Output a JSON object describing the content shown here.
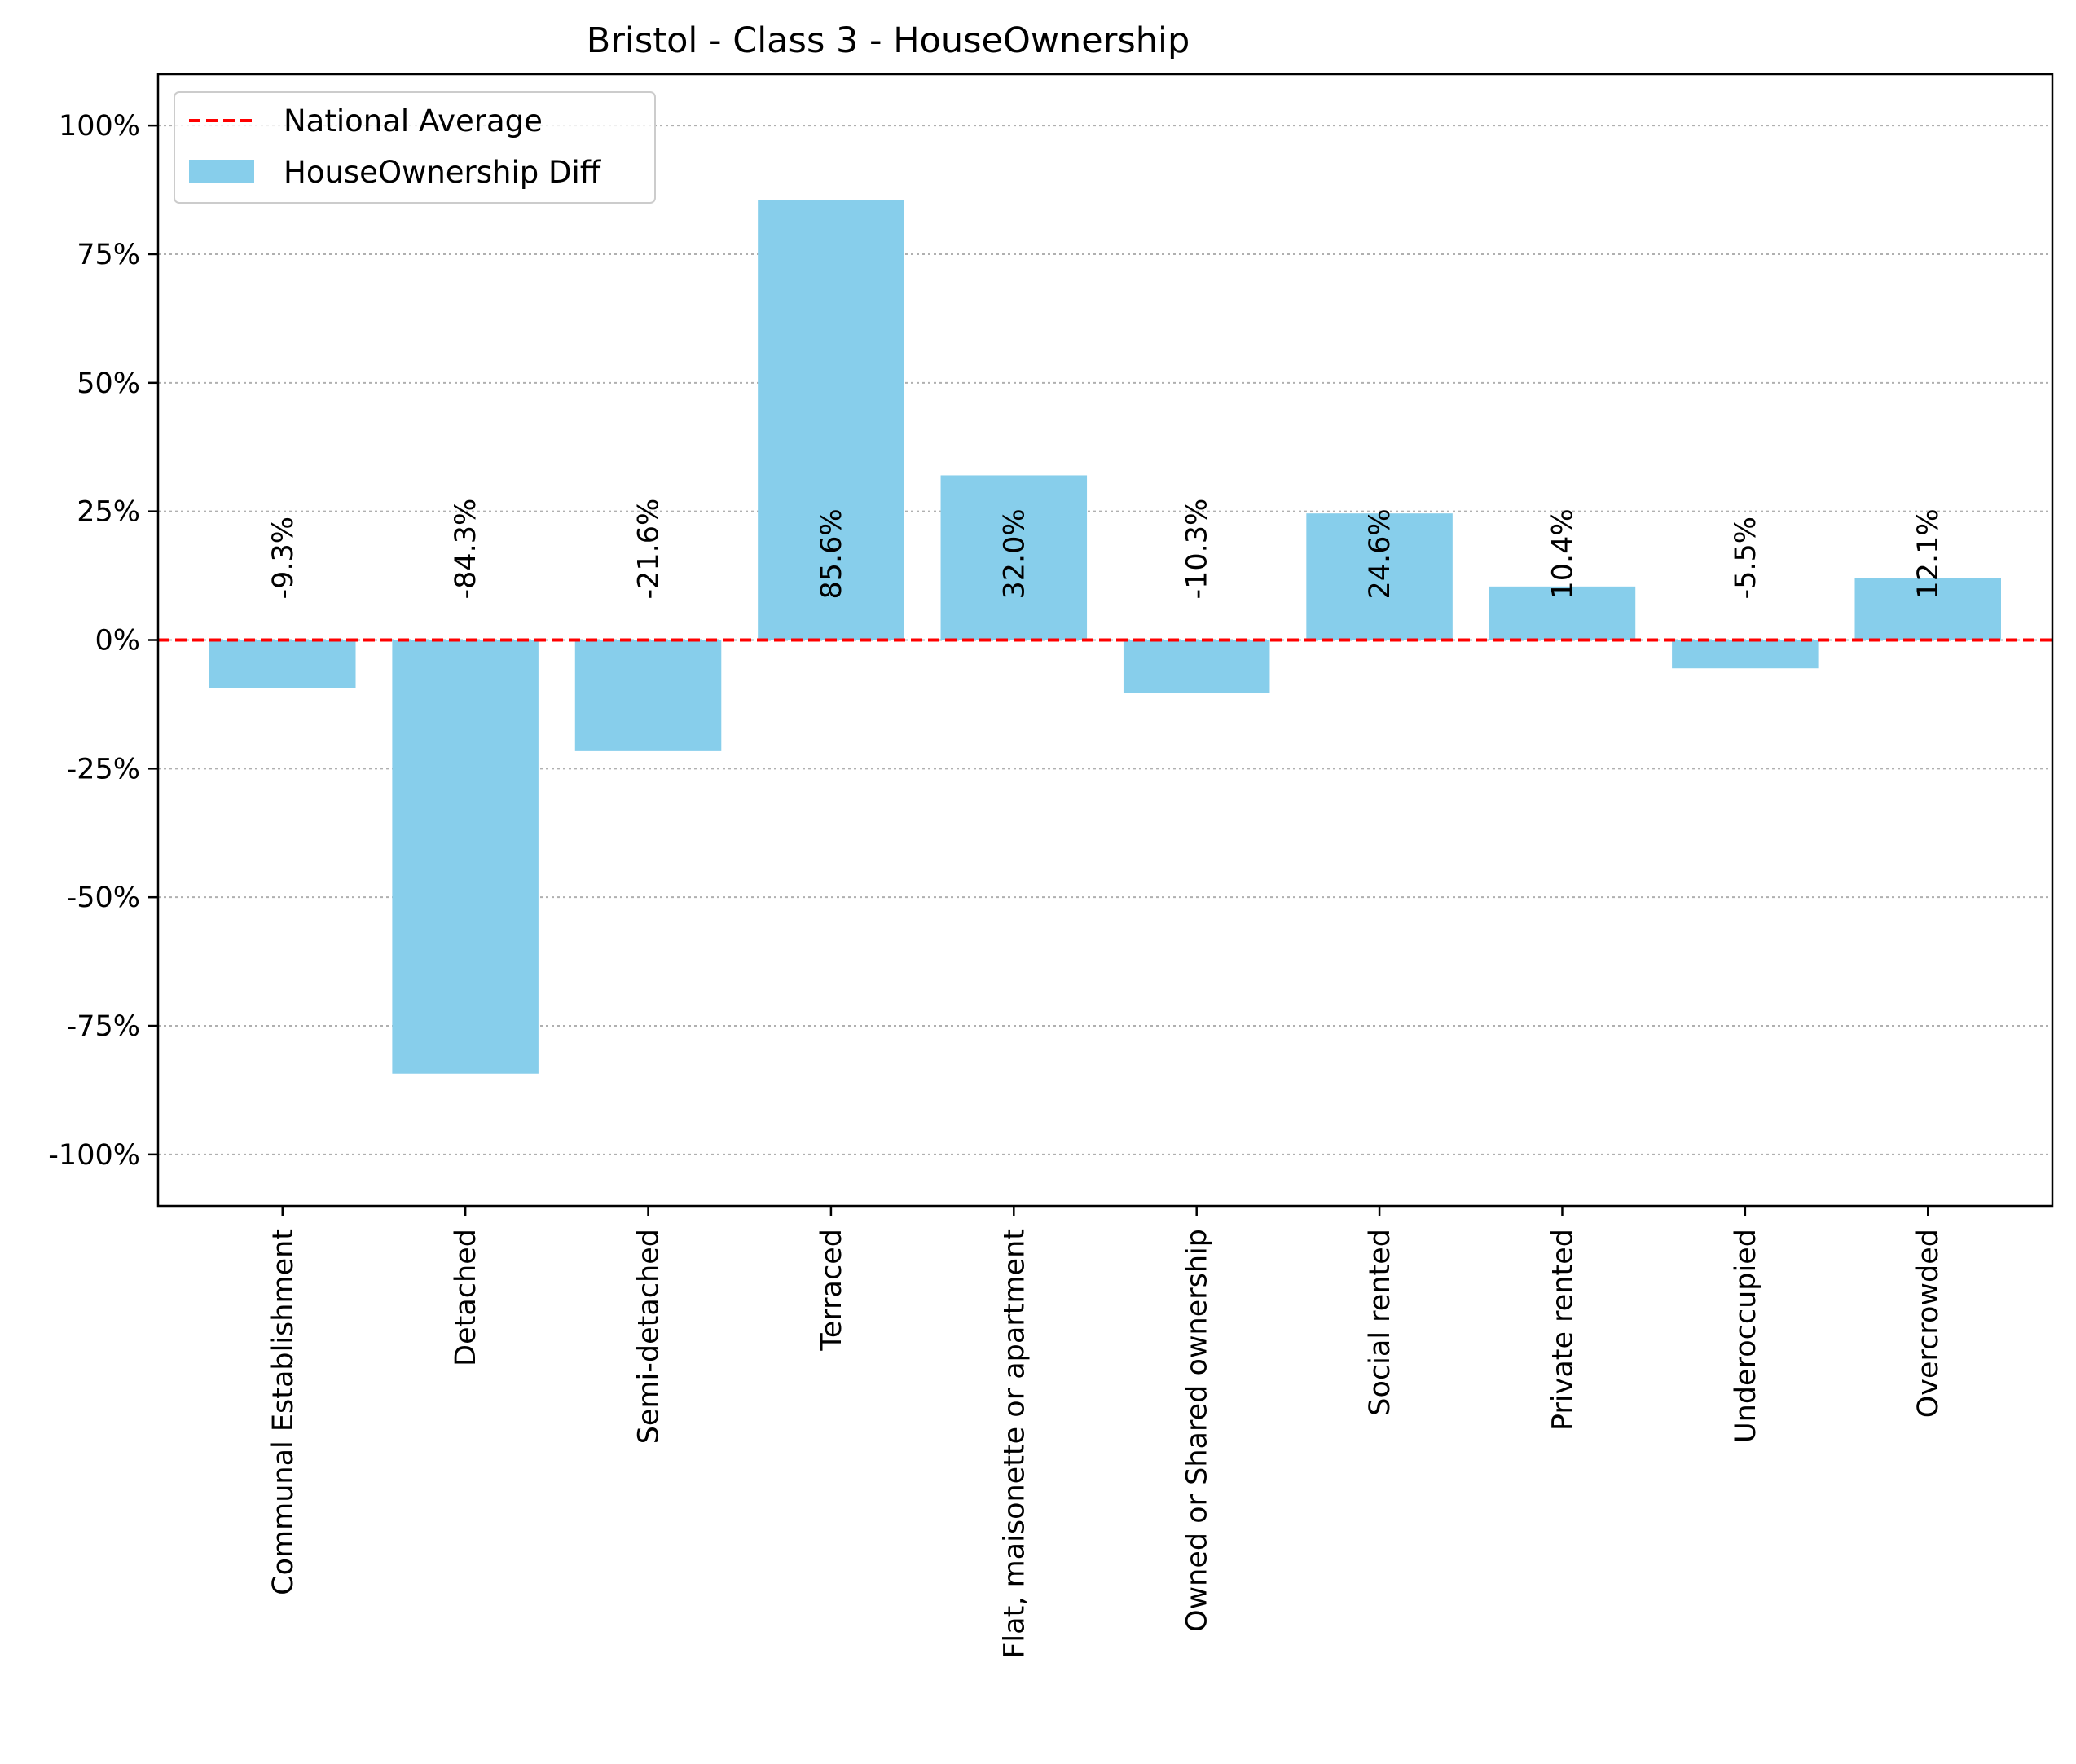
{
  "chart_data": {
    "type": "bar",
    "title": "Bristol - Class 3 - HouseOwnership",
    "xlabel": "",
    "ylabel": "",
    "categories": [
      "Communal Establishment",
      "Detached",
      "Semi-detached",
      "Terraced",
      "Flat, maisonette or apartment",
      "Owned or Shared ownership",
      "Social rented",
      "Private rented",
      "Underoccupied",
      "Overcrowded"
    ],
    "series": [
      {
        "name": "HouseOwnership Diff",
        "values": [
          -9.3,
          -84.3,
          -21.6,
          85.6,
          32.0,
          -10.3,
          24.6,
          10.4,
          -5.5,
          12.1
        ],
        "color": "#87CEEB"
      }
    ],
    "value_labels": [
      "-9.3%",
      "-84.3%",
      "-21.6%",
      "85.6%",
      "32.0%",
      "-10.3%",
      "24.6%",
      "10.4%",
      "-5.5%",
      "12.1%"
    ],
    "reference_line": {
      "name": "National Average",
      "value": 0,
      "color": "#ff0000",
      "style": "dashed"
    },
    "ylim": [
      -110,
      110
    ],
    "yticks": [
      -100,
      -75,
      -50,
      -25,
      0,
      25,
      50,
      75,
      100
    ],
    "ytick_labels": [
      "-100%",
      "-75%",
      "-50%",
      "-25%",
      "0%",
      "25%",
      "50%",
      "75%",
      "100%"
    ],
    "grid": {
      "axis": "y",
      "style": "dotted"
    },
    "legend": {
      "position": "upper-left",
      "entries": [
        "National Average",
        "HouseOwnership Diff"
      ]
    }
  }
}
